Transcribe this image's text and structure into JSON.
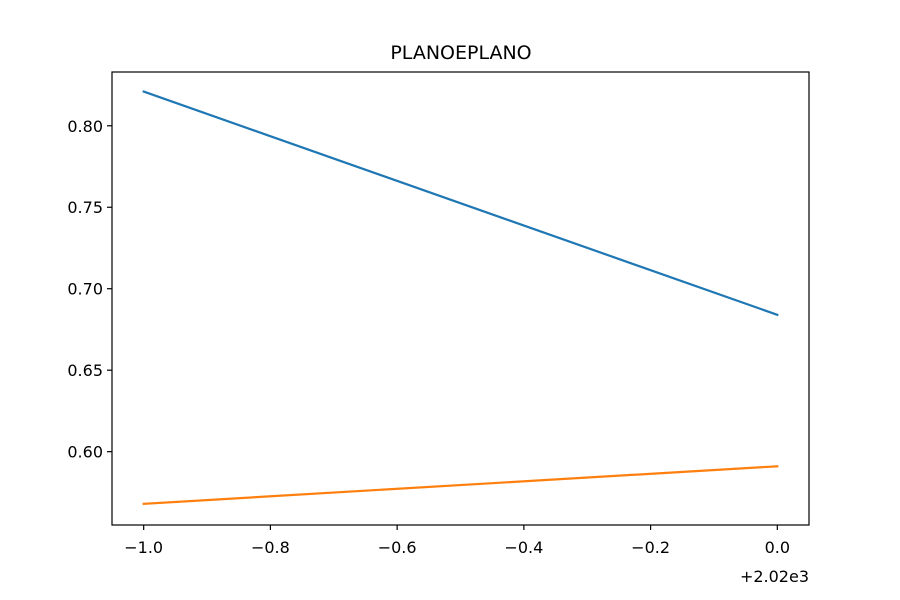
{
  "chart_data": {
    "type": "line",
    "title": "PLANOEPLANO",
    "xlabel": "",
    "ylabel": "",
    "x_offset_label": "+2.02e3",
    "x": [
      2019,
      2020
    ],
    "xlim": [
      2018.95,
      2020.05
    ],
    "ylim": [
      0.555,
      0.833
    ],
    "xticks": [
      2019.0,
      2019.2,
      2019.4,
      2019.6,
      2019.8,
      2020.0
    ],
    "xtick_labels": [
      "−1.0",
      "−0.8",
      "−0.6",
      "−0.4",
      "−0.2",
      "0.0"
    ],
    "yticks": [
      0.6,
      0.65,
      0.7,
      0.75,
      0.8
    ],
    "ytick_labels": [
      "0.60",
      "0.65",
      "0.70",
      "0.75",
      "0.80"
    ],
    "series": [
      {
        "values": [
          0.821,
          0.684
        ],
        "color": "#1f77b4"
      },
      {
        "values": [
          0.568,
          0.591
        ],
        "color": "#ff7f0e"
      }
    ],
    "grid": false,
    "legend": "none"
  }
}
